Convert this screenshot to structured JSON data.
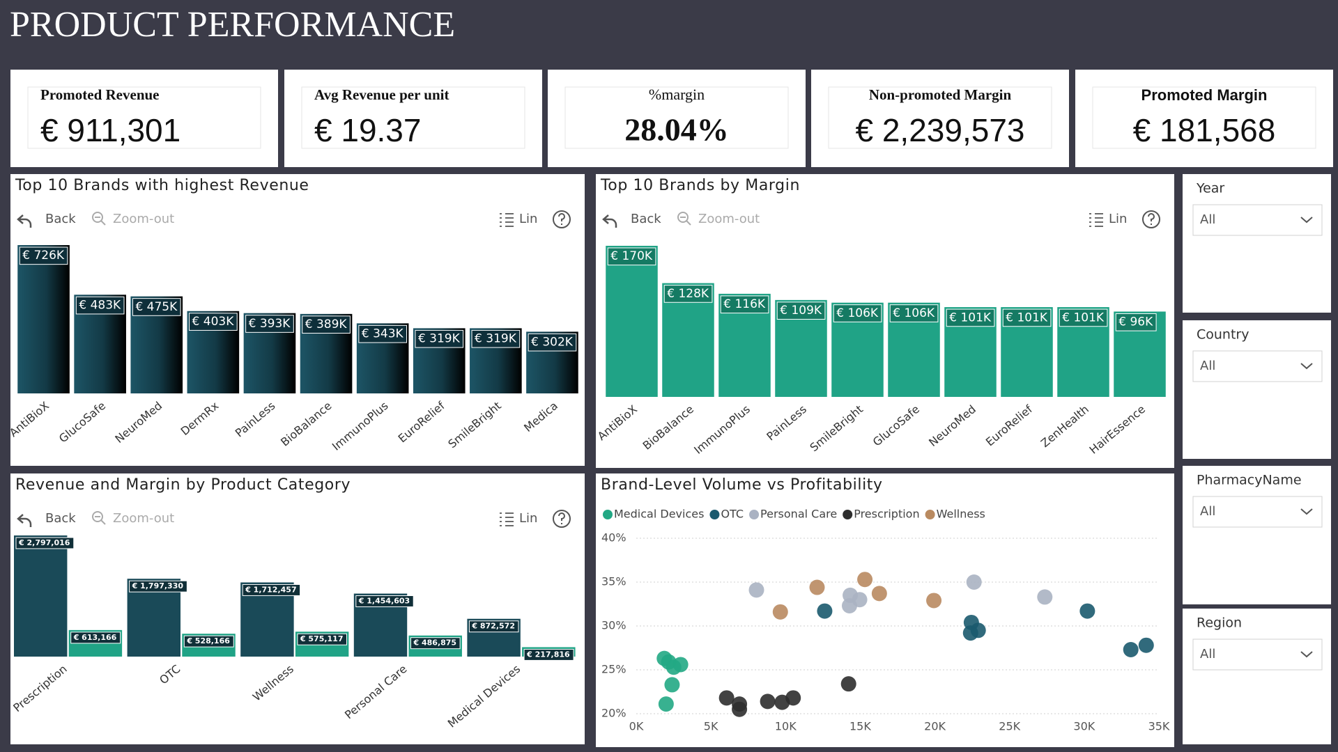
{
  "title": "PRODUCT PERFORMANCE",
  "kpis": [
    {
      "label": "Promoted Revenue",
      "value": "€ 911,301"
    },
    {
      "label": "Avg Revenue per unit",
      "value": "€ 19.37"
    },
    {
      "label": "%margin",
      "value": "28.04%"
    },
    {
      "label": "Non-promoted Margin",
      "value": "€ 2,239,573"
    },
    {
      "label": "Promoted Margin",
      "value": "€ 181,568"
    }
  ],
  "toolbar": {
    "back": "Back",
    "zoom_out": "Zoom-out",
    "lin": "Lin"
  },
  "chart_data": [
    {
      "type": "bar",
      "title": "Top 10 Brands with highest Revenue",
      "categories": [
        "AntiBioX",
        "GlucoSafe",
        "NeuroMed",
        "DermRx",
        "PainLess",
        "BioBalance",
        "ImmunoPlus",
        "EuroRelief",
        "SmileBright",
        "Medica"
      ],
      "values": [
        726000,
        483000,
        475000,
        403000,
        393000,
        389000,
        343000,
        319000,
        319000,
        302000
      ],
      "value_labels": [
        "€ 726K",
        "€ 483K",
        "€ 475K",
        "€ 403K",
        "€ 393K",
        "€ 389K",
        "€ 343K",
        "€ 319K",
        "€ 319K",
        "€ 302K"
      ],
      "color": "#1d5566"
    },
    {
      "type": "bar",
      "title": "Top 10 Brands by Margin",
      "categories": [
        "AntiBioX",
        "BioBalance",
        "ImmunoPlus",
        "PainLess",
        "SmileBright",
        "GlucoSafe",
        "NeuroMed",
        "EuroRelief",
        "ZenHealth",
        "HairEssence"
      ],
      "values": [
        170000,
        128000,
        116000,
        109000,
        106000,
        106000,
        101000,
        101000,
        101000,
        96000
      ],
      "value_labels": [
        "€ 170K",
        "€ 128K",
        "€ 116K",
        "€ 109K",
        "€ 106K",
        "€ 106K",
        "€ 101K",
        "€ 101K",
        "€ 101K",
        "€ 96K"
      ],
      "color": "#20a386"
    },
    {
      "type": "bar",
      "title": "Revenue and Margin by Product Category",
      "categories": [
        "Prescription",
        "OTC",
        "Wellness",
        "Personal Care",
        "Medical Devices"
      ],
      "series": [
        {
          "color": "#1a4a58",
          "values": [
            2797016,
            1797330,
            1712457,
            1454603,
            872572
          ],
          "value_labels": [
            "€ 2,797,016",
            "€ 1,797,330",
            "€ 1,712,457",
            "€ 1,454,603",
            "€ 872,572"
          ]
        },
        {
          "color": "#20a386",
          "values": [
            613166,
            528166,
            575117,
            486875,
            217816
          ],
          "value_labels": [
            "€ 613,166",
            "€ 528,166",
            "€ 575,117",
            "€ 486,875",
            "€ 217,816"
          ]
        }
      ]
    },
    {
      "type": "scatter",
      "title": "Brand-Level Volume vs Profitability",
      "xlim": [
        0,
        35000
      ],
      "xticks": [
        {
          "value": 0,
          "label": "0K"
        },
        {
          "value": 5000,
          "label": "5K"
        },
        {
          "value": 10000,
          "label": "10K"
        },
        {
          "value": 15000,
          "label": "15K"
        },
        {
          "value": 20000,
          "label": "20K"
        },
        {
          "value": 25000,
          "label": "25K"
        },
        {
          "value": 30000,
          "label": "30K"
        },
        {
          "value": 35000,
          "label": "35K"
        }
      ],
      "ylim": [
        20,
        40
      ],
      "yticks": [
        {
          "value": 20,
          "label": "20%"
        },
        {
          "value": 25,
          "label": "25%"
        },
        {
          "value": 30,
          "label": "30%"
        },
        {
          "value": 35,
          "label": "35%"
        },
        {
          "value": 40,
          "label": "40%"
        }
      ],
      "grid": true,
      "series": [
        {
          "name": "Medical Devices",
          "color": "#22a884",
          "x": [
            1880,
            2170,
            2510,
            2970,
            2400,
            2000
          ],
          "values": [
            26.3,
            25.9,
            25.3,
            25.6,
            23.3,
            21.1
          ]
        },
        {
          "name": "OTC",
          "color": "#1b5a6e",
          "x": [
            12620,
            22440,
            22390,
            22900,
            30210,
            33120,
            34150
          ],
          "values": [
            31.7,
            30.4,
            29.2,
            29.5,
            31.7,
            27.3,
            27.8
          ]
        },
        {
          "name": "Personal Care",
          "color": "#aab2c2",
          "x": [
            8050,
            14280,
            14330,
            14960,
            22620,
            27360
          ],
          "values": [
            34.1,
            32.3,
            33.5,
            33.0,
            35.0,
            33.3
          ]
        },
        {
          "name": "Prescription",
          "color": "#2e2e2e",
          "x": [
            6050,
            6910,
            6910,
            8800,
            9770,
            10510,
            14220
          ],
          "values": [
            21.8,
            21.1,
            20.5,
            21.4,
            21.3,
            21.8,
            23.4
          ]
        },
        {
          "name": "Wellness",
          "color": "#b98a60",
          "x": [
            9650,
            12110,
            15310,
            16280,
            19930
          ],
          "values": [
            31.6,
            34.4,
            35.3,
            33.7,
            32.9
          ]
        }
      ]
    }
  ],
  "slicers": [
    {
      "title": "Year",
      "value": "All"
    },
    {
      "title": "Country",
      "value": "All"
    },
    {
      "title": "PharmacyName",
      "value": "All"
    },
    {
      "title": "Region",
      "value": "All"
    }
  ]
}
